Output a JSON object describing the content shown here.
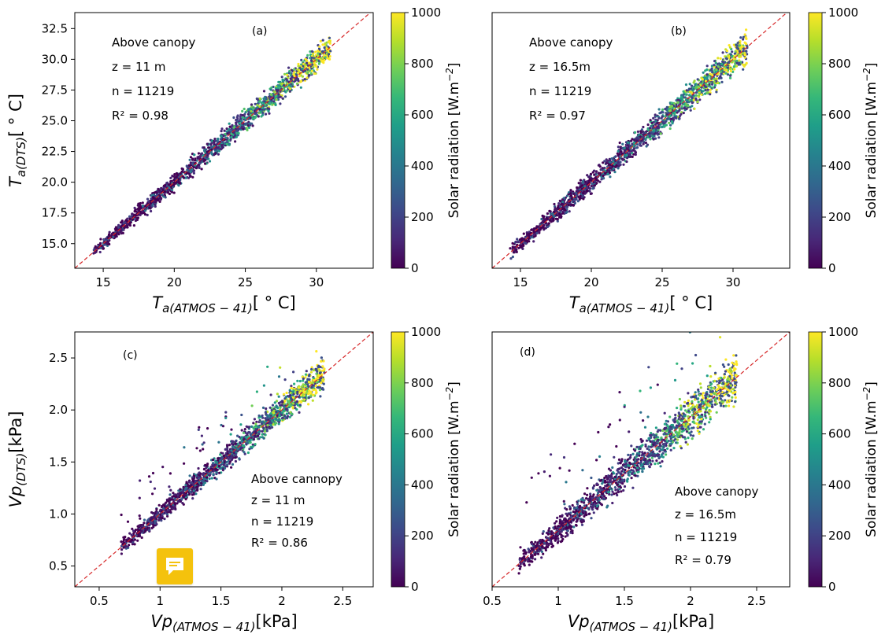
{
  "colors": {
    "reference_line": "#d62728",
    "viridis": [
      "#440154",
      "#482878",
      "#3e4989",
      "#31688e",
      "#26828e",
      "#1f9e89",
      "#35b779",
      "#6ece58",
      "#b5de2b",
      "#fde725"
    ],
    "feedback_button": "#f4c20d"
  },
  "icons": {
    "feedback": "chat-bubble-icon"
  },
  "chart_data": [
    {
      "type": "scatter",
      "panel_label": "(a)",
      "xlabel_main": "T",
      "xlabel_sub": "a(ATMOS − 41)",
      "xlabel_unit": "[ ° C]",
      "ylabel_main": "T",
      "ylabel_sub": "a(DTS)",
      "ylabel_unit": "[ ° C]",
      "xlim": [
        13,
        34
      ],
      "ylim": [
        13,
        33.8
      ],
      "xticks": [
        15,
        20,
        25,
        30
      ],
      "yticks": [
        15.0,
        17.5,
        20.0,
        22.5,
        25.0,
        27.5,
        30.0,
        32.5
      ],
      "ytick_decimals": 1,
      "data_range": [
        14.2,
        31.0
      ],
      "spread": 0.65,
      "reference_line": "1:1",
      "annotations": [
        "Above canopy",
        "z = 11 m",
        "n = 11219",
        "R² = 0.98"
      ],
      "colorbar": {
        "label": "Solar radiation [W.m",
        "label_sup": "−2",
        "label_close": "]",
        "range": [
          0,
          1000
        ],
        "ticks": [
          0,
          200,
          400,
          600,
          800,
          1000
        ]
      }
    },
    {
      "type": "scatter",
      "panel_label": "(b)",
      "xlabel_main": "T",
      "xlabel_sub": "a(ATMOS − 41)",
      "xlabel_unit": "[ ° C]",
      "ylabel_main": "",
      "ylabel_sub": "",
      "ylabel_unit": "",
      "xlim": [
        13,
        34
      ],
      "ylim": [
        13,
        33.8
      ],
      "xticks": [
        15,
        20,
        25,
        30
      ],
      "yticks": [],
      "ytick_decimals": 1,
      "data_range": [
        14.2,
        31.0
      ],
      "spread": 0.75,
      "reference_line": "1:1",
      "annotations": [
        "Above canopy",
        "z = 16.5m",
        "n = 11219",
        "R² = 0.97"
      ],
      "colorbar": {
        "label": "Solar radiation [W.m",
        "label_sup": "−2",
        "label_close": "]",
        "range": [
          0,
          1000
        ],
        "ticks": [
          0,
          200,
          400,
          600,
          800,
          1000
        ]
      }
    },
    {
      "type": "scatter",
      "panel_label": "(c)",
      "xlabel_main": "Vp",
      "xlabel_sub": "(ATMOS − 41)",
      "xlabel_unit": "[kPa]",
      "ylabel_main": "Vp",
      "ylabel_sub": "(DTS)",
      "ylabel_unit": "[kPa]",
      "xlim": [
        0.3,
        2.75
      ],
      "ylim": [
        0.3,
        2.75
      ],
      "xticks": [
        0.5,
        1.0,
        1.5,
        2.0,
        2.5
      ],
      "yticks": [
        0.5,
        1.0,
        1.5,
        2.0,
        2.5
      ],
      "ytick_decimals": 1,
      "data_range": [
        0.68,
        2.35
      ],
      "spread": 0.09,
      "reference_line": "1:1",
      "annotations": [
        "Above cannopy",
        "z = 11 m",
        "n = 11219",
        "R² = 0.86"
      ],
      "colorbar": {
        "label": "Solar radiation [W.m",
        "label_sup": "−2",
        "label_close": "]",
        "range": [
          0,
          1000
        ],
        "ticks": [
          0,
          200,
          400,
          600,
          800,
          1000
        ]
      }
    },
    {
      "type": "scatter",
      "panel_label": "(d)",
      "xlabel_main": "Vp",
      "xlabel_sub": "(ATMOS − 41)",
      "xlabel_unit": "[kPa]",
      "ylabel_main": "",
      "ylabel_sub": "",
      "ylabel_unit": "",
      "xlim": [
        0.5,
        2.75
      ],
      "ylim": [
        0.5,
        2.75
      ],
      "xticks": [
        0.5,
        1.0,
        1.5,
        2.0,
        2.5
      ],
      "yticks": [],
      "ytick_decimals": 1,
      "data_range": [
        0.7,
        2.35
      ],
      "spread": 0.12,
      "reference_line": "1:1",
      "annotations": [
        "Above canopy",
        "z = 16.5m",
        "n = 11219",
        "R² = 0.79"
      ],
      "colorbar": {
        "label": "Solar radiation [W.m",
        "label_sup": "−2",
        "label_close": "]",
        "range": [
          0,
          1000
        ],
        "ticks": [
          0,
          200,
          400,
          600,
          800,
          1000
        ]
      }
    }
  ]
}
